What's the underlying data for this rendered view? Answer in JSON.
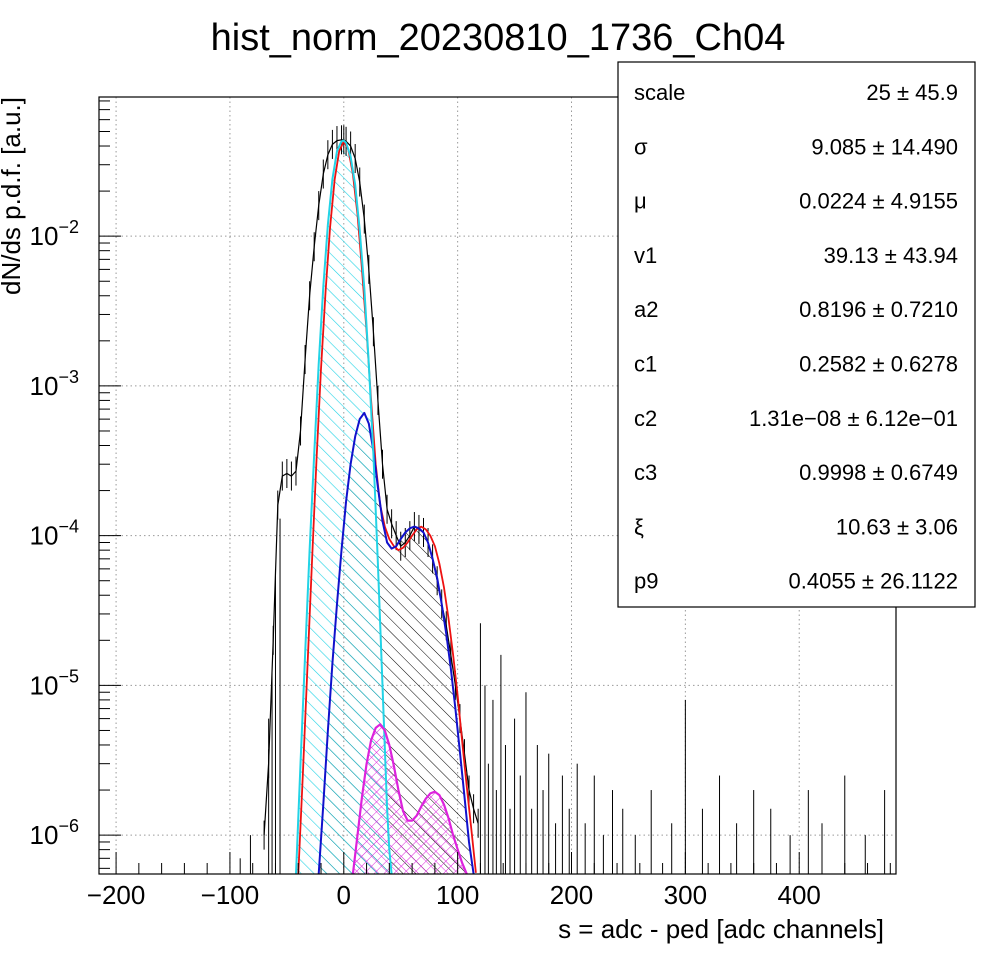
{
  "chart_data": {
    "type": "histogram",
    "title": "hist_norm_20230810_1736_Ch04",
    "xlabel": "s = adc - ped [adc channels]",
    "ylabel": "dN/ds p.d.f. [a.u.]",
    "xlim": [
      -215,
      485
    ],
    "ylim": [
      5.5e-07,
      0.085
    ],
    "yscale": "log",
    "grid": true,
    "x_ticks": [
      -200,
      -100,
      0,
      100,
      200,
      300,
      400
    ],
    "x_tick_labels": [
      "−200",
      "−100",
      "0",
      "100",
      "200",
      "300",
      "400"
    ],
    "y_ticks": [
      {
        "value": 1e-06,
        "mant": "10",
        "exp": "−6"
      },
      {
        "value": 1e-05,
        "mant": "10",
        "exp": "−5"
      },
      {
        "value": 0.0001,
        "mant": "10",
        "exp": "−4"
      },
      {
        "value": 0.001,
        "mant": "10",
        "exp": "−3"
      },
      {
        "value": 0.01,
        "mant": "10",
        "exp": "−2"
      }
    ],
    "series": [
      {
        "kind": "data",
        "color": "#000000",
        "x": [
          -70,
          -66,
          -62,
          -58,
          -54,
          -50,
          -46,
          -42,
          -38,
          -34,
          -30,
          -26,
          -22,
          -18,
          -14,
          -10,
          -6,
          -2,
          0,
          2,
          6,
          10,
          14,
          18,
          22,
          26,
          30,
          34,
          38,
          42,
          46,
          50,
          54,
          58,
          62,
          66,
          70,
          74,
          78,
          82,
          86,
          90,
          94,
          98,
          102,
          106,
          110,
          114,
          118
        ],
        "y": [
          1e-06,
          3e-06,
          2e-05,
          0.00016,
          0.00025,
          0.00026,
          0.00025,
          0.00027,
          0.0005,
          0.0015,
          0.004,
          0.0085,
          0.016,
          0.026,
          0.035,
          0.041,
          0.0435,
          0.044,
          0.044,
          0.043,
          0.04,
          0.033,
          0.023,
          0.013,
          0.006,
          0.0023,
          0.0008,
          0.0003,
          0.00015,
          0.00012,
          0.0001,
          8.5e-05,
          9e-05,
          0.0001,
          0.000115,
          0.00011,
          0.000105,
          9e-05,
          7e-05,
          5e-05,
          3.5e-05,
          2.5e-05,
          1.6e-05,
          1e-05,
          6e-06,
          3.5e-06,
          2e-06,
          1.5e-06,
          1.2e-06
        ]
      },
      {
        "kind": "fit-total",
        "color": "#ee1111",
        "x": [
          -40,
          -36,
          -32,
          -28,
          -24,
          -20,
          -16,
          -12,
          -8,
          -4,
          0,
          4,
          8,
          12,
          16,
          20,
          24,
          28,
          32,
          36,
          40,
          44,
          48,
          52,
          56,
          60,
          64,
          68,
          72,
          76,
          80,
          84,
          88,
          92,
          96,
          100,
          104,
          108,
          112,
          116
        ],
        "y": [
          5.5e-07,
          2.5e-06,
          1.3e-05,
          6.5e-05,
          0.00032,
          0.0013,
          0.0043,
          0.0115,
          0.024,
          0.037,
          0.043,
          0.038,
          0.026,
          0.014,
          0.006,
          0.0023,
          0.0008,
          0.0003,
          0.00016,
          0.000115,
          9.5e-05,
          8.5e-05,
          8e-05,
          8.3e-05,
          9e-05,
          0.0001,
          0.00011,
          0.000115,
          0.00011,
          0.0001,
          8.5e-05,
          6.5e-05,
          4.5e-05,
          2.8e-05,
          1.6e-05,
          8.5e-06,
          4.2e-06,
          2.1e-06,
          1.1e-06,
          5.6e-07
        ]
      },
      {
        "kind": "fit-pedestal",
        "color": "#22d3e6",
        "x": [
          -42,
          -38,
          -34,
          -30,
          -26,
          -22,
          -18,
          -14,
          -10,
          -6,
          -2,
          0,
          2,
          6,
          10,
          14,
          18,
          22,
          26,
          30,
          34,
          38,
          40,
          42
        ],
        "y": [
          5.5e-07,
          3e-06,
          1.6e-05,
          8e-05,
          0.00035,
          0.0014,
          0.0046,
          0.012,
          0.024,
          0.037,
          0.043,
          0.0435,
          0.042,
          0.034,
          0.022,
          0.011,
          0.0045,
          0.0014,
          0.00035,
          6.5e-05,
          1e-05,
          1.5e-06,
          8e-07,
          5.5e-07
        ]
      },
      {
        "kind": "fit-signal",
        "color": "#1111cc",
        "x": [
          -22,
          -18,
          -14,
          -10,
          -6,
          -2,
          2,
          6,
          10,
          14,
          18,
          22,
          26,
          30,
          34,
          38,
          42,
          46,
          50,
          54,
          58,
          62,
          66,
          70,
          74,
          78,
          82,
          86,
          90,
          94,
          98,
          102,
          106,
          110,
          114
        ],
        "y": [
          5.5e-07,
          1.6e-06,
          5e-06,
          1.4e-05,
          3.5e-05,
          8e-05,
          0.00017,
          0.0003,
          0.00046,
          0.0006,
          0.00066,
          0.00056,
          0.00037,
          0.00021,
          0.000125,
          9e-05,
          8.2e-05,
          8.5e-05,
          9.5e-05,
          0.000105,
          0.000112,
          0.000115,
          0.000112,
          0.000105,
          9e-05,
          7e-05,
          5.2e-05,
          3.5e-05,
          2.2e-05,
          1.3e-05,
          7e-06,
          3.6e-06,
          1.8e-06,
          9e-07,
          5.5e-07
        ]
      },
      {
        "kind": "fit-multi",
        "color": "#dd22dd",
        "x": [
          8,
          12,
          16,
          20,
          24,
          28,
          32,
          36,
          40,
          44,
          48,
          52,
          56,
          60,
          64,
          68,
          72,
          76,
          80,
          84,
          88,
          92,
          96,
          100,
          104,
          108
        ],
        "y": [
          5.5e-07,
          1e-06,
          1.8e-06,
          3e-06,
          4.3e-06,
          5.2e-06,
          5.5e-06,
          5e-06,
          4e-06,
          2.9e-06,
          2e-06,
          1.45e-06,
          1.25e-06,
          1.25e-06,
          1.35e-06,
          1.55e-06,
          1.75e-06,
          1.9e-06,
          1.95e-06,
          1.85e-06,
          1.6e-06,
          1.3e-06,
          1e-06,
          8e-07,
          6.5e-07,
          5.5e-07
        ]
      }
    ],
    "outliers": [
      {
        "x": -91,
        "y": 7e-07
      },
      {
        "x": -82,
        "y": 1e-06
      },
      {
        "x": -66,
        "y": 6e-06
      },
      {
        "x": -63,
        "y": 1.2e-05
      },
      {
        "x": -60,
        "y": 6e-05
      },
      {
        "x": -56,
        "y": 0.00013
      },
      {
        "x": 120,
        "y": 2.6e-05
      },
      {
        "x": 124,
        "y": 1e-05
      },
      {
        "x": 127,
        "y": 3e-06
      },
      {
        "x": 131,
        "y": 8e-06
      },
      {
        "x": 134,
        "y": 2e-06
      },
      {
        "x": 138,
        "y": 1.6e-05
      },
      {
        "x": 142,
        "y": 4e-06
      },
      {
        "x": 146,
        "y": 1.5e-06
      },
      {
        "x": 150,
        "y": 6e-06
      },
      {
        "x": 155,
        "y": 2.5e-06
      },
      {
        "x": 160,
        "y": 9e-06
      },
      {
        "x": 165,
        "y": 1.5e-06
      },
      {
        "x": 170,
        "y": 4e-06
      },
      {
        "x": 175,
        "y": 2e-06
      },
      {
        "x": 180,
        "y": 3.5e-06
      },
      {
        "x": 186,
        "y": 1.2e-06
      },
      {
        "x": 192,
        "y": 2.5e-06
      },
      {
        "x": 198,
        "y": 1.5e-06
      },
      {
        "x": 205,
        "y": 3e-06
      },
      {
        "x": 212,
        "y": 1.2e-06
      },
      {
        "x": 220,
        "y": 2.5e-06
      },
      {
        "x": 228,
        "y": 1e-06
      },
      {
        "x": 236,
        "y": 2e-06
      },
      {
        "x": 245,
        "y": 1.5e-06
      },
      {
        "x": 256,
        "y": 1e-06
      },
      {
        "x": 270,
        "y": 2e-06
      },
      {
        "x": 288,
        "y": 1.2e-06
      },
      {
        "x": 300,
        "y": 8e-06
      },
      {
        "x": 315,
        "y": 1.5e-06
      },
      {
        "x": 330,
        "y": 2.5e-06
      },
      {
        "x": 345,
        "y": 1.2e-06
      },
      {
        "x": 360,
        "y": 2e-06
      },
      {
        "x": 375,
        "y": 1.5e-06
      },
      {
        "x": 392,
        "y": 1e-06
      },
      {
        "x": 408,
        "y": 2e-06
      },
      {
        "x": 420,
        "y": 1.2e-06
      },
      {
        "x": 440,
        "y": 2.5e-06
      },
      {
        "x": 458,
        "y": 1e-06
      },
      {
        "x": 475,
        "y": 2e-06
      }
    ]
  },
  "stats": {
    "rows": [
      {
        "label": "scale",
        "value": "25 ± 45.9"
      },
      {
        "label": "σ",
        "value": "9.085 ± 14.490"
      },
      {
        "label": "μ",
        "value": "0.0224 ± 4.9155"
      },
      {
        "label": "v1",
        "value": "39.13 ± 43.94"
      },
      {
        "label": "a2",
        "value": "0.8196 ± 0.7210"
      },
      {
        "label": "c1",
        "value": "0.2582 ± 0.6278"
      },
      {
        "label": "c2",
        "value": "1.31e−08 ± 6.12e−01"
      },
      {
        "label": "c3",
        "value": "0.9998 ± 0.6749"
      },
      {
        "label": "ξ",
        "value": "10.63 ± 3.06"
      },
      {
        "label": "p9",
        "value": "0.4055 ± 26.1122"
      }
    ]
  }
}
